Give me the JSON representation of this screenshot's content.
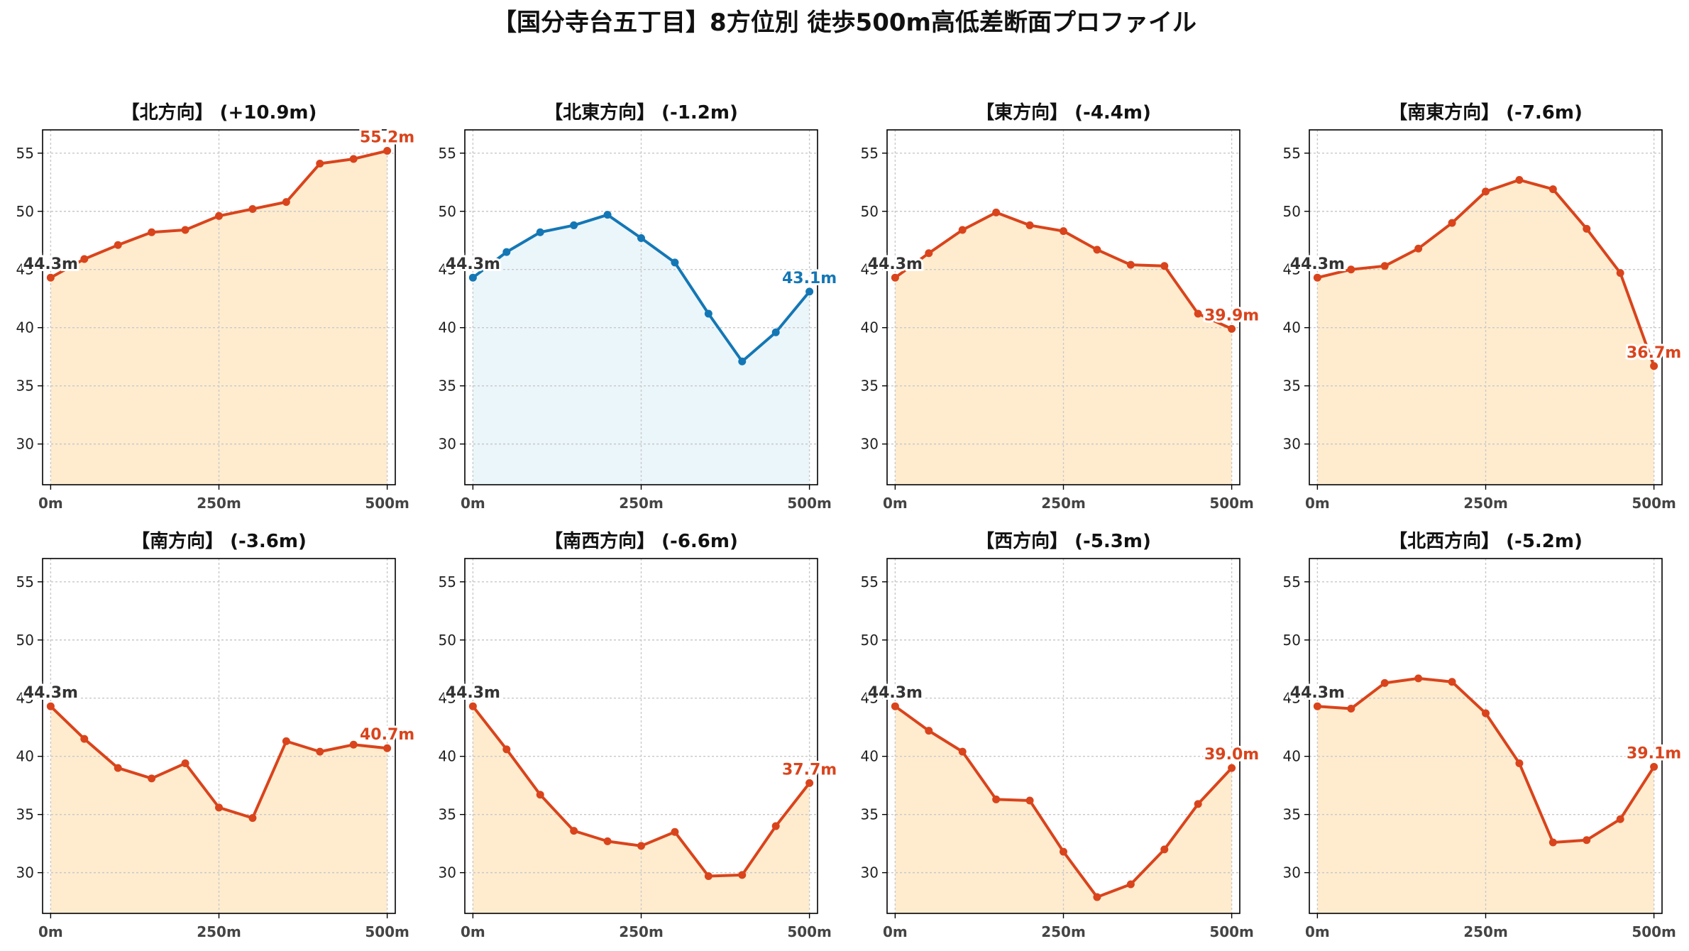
{
  "figure": {
    "title": "【国分寺台五丁目】8方位別 徒歩500m高低差断面プロファイル"
  },
  "colors": {
    "down_line": "#d9441c",
    "down_fill": "#ffeccf",
    "up_line": "#1477b5",
    "up_fill": "#ebf6fb",
    "start_label": "#333333",
    "grid": "#c8c8c8",
    "axis": "#000000"
  },
  "chart_data": [
    {
      "type": "area",
      "title": "【北方向】 (+10.9m)",
      "x": [
        0,
        50,
        100,
        150,
        200,
        250,
        300,
        350,
        400,
        450,
        500
      ],
      "values": [
        44.3,
        45.9,
        47.1,
        48.2,
        48.4,
        49.6,
        50.2,
        50.8,
        54.1,
        54.5,
        55.2
      ],
      "xticks": [
        "0m",
        "250m",
        "500m"
      ],
      "yticks": [
        "30",
        "35",
        "40",
        "45",
        "50",
        "55"
      ],
      "start_label": "44.3m",
      "end_label": "55.2m",
      "ylim": [
        26.5,
        57
      ],
      "xlim": [
        -12,
        512
      ],
      "grid": true,
      "style": "down"
    },
    {
      "type": "area",
      "title": "【北東方向】 (-1.2m)",
      "x": [
        0,
        50,
        100,
        150,
        200,
        250,
        300,
        350,
        400,
        450,
        500
      ],
      "values": [
        44.3,
        46.5,
        48.2,
        48.8,
        49.7,
        47.7,
        45.6,
        41.2,
        37.1,
        39.6,
        43.1
      ],
      "xticks": [
        "0m",
        "250m",
        "500m"
      ],
      "yticks": [
        "30",
        "35",
        "40",
        "45",
        "50",
        "55"
      ],
      "start_label": "44.3m",
      "end_label": "43.1m",
      "ylim": [
        26.5,
        57
      ],
      "xlim": [
        -12,
        512
      ],
      "grid": true,
      "style": "up"
    },
    {
      "type": "area",
      "title": "【東方向】 (-4.4m)",
      "x": [
        0,
        50,
        100,
        150,
        200,
        250,
        300,
        350,
        400,
        450,
        500
      ],
      "values": [
        44.3,
        46.4,
        48.4,
        49.9,
        48.8,
        48.3,
        46.7,
        45.4,
        45.3,
        41.2,
        39.9
      ],
      "xticks": [
        "0m",
        "250m",
        "500m"
      ],
      "yticks": [
        "30",
        "35",
        "40",
        "45",
        "50",
        "55"
      ],
      "start_label": "44.3m",
      "end_label": "39.9m",
      "ylim": [
        26.5,
        57
      ],
      "xlim": [
        -12,
        512
      ],
      "grid": true,
      "style": "down"
    },
    {
      "type": "area",
      "title": "【南東方向】 (-7.6m)",
      "x": [
        0,
        50,
        100,
        150,
        200,
        250,
        300,
        350,
        400,
        450,
        500
      ],
      "values": [
        44.3,
        45.0,
        45.3,
        46.8,
        49.0,
        51.7,
        52.7,
        51.9,
        48.5,
        44.7,
        36.7
      ],
      "xticks": [
        "0m",
        "250m",
        "500m"
      ],
      "yticks": [
        "30",
        "35",
        "40",
        "45",
        "50",
        "55"
      ],
      "start_label": "44.3m",
      "end_label": "36.7m",
      "ylim": [
        26.5,
        57
      ],
      "xlim": [
        -12,
        512
      ],
      "grid": true,
      "style": "down"
    },
    {
      "type": "area",
      "title": "【南方向】 (-3.6m)",
      "x": [
        0,
        50,
        100,
        150,
        200,
        250,
        300,
        350,
        400,
        450,
        500
      ],
      "values": [
        44.3,
        41.5,
        39.0,
        38.1,
        39.4,
        35.6,
        34.7,
        41.3,
        40.4,
        41.0,
        40.7
      ],
      "xticks": [
        "0m",
        "250m",
        "500m"
      ],
      "yticks": [
        "30",
        "35",
        "40",
        "45",
        "50",
        "55"
      ],
      "start_label": "44.3m",
      "end_label": "40.7m",
      "ylim": [
        26.5,
        57
      ],
      "xlim": [
        -12,
        512
      ],
      "grid": true,
      "style": "down"
    },
    {
      "type": "area",
      "title": "【南西方向】 (-6.6m)",
      "x": [
        0,
        50,
        100,
        150,
        200,
        250,
        300,
        350,
        400,
        450,
        500
      ],
      "values": [
        44.3,
        40.6,
        36.7,
        33.6,
        32.7,
        32.3,
        33.5,
        29.7,
        29.8,
        34.0,
        37.7
      ],
      "xticks": [
        "0m",
        "250m",
        "500m"
      ],
      "yticks": [
        "30",
        "35",
        "40",
        "45",
        "50",
        "55"
      ],
      "start_label": "44.3m",
      "end_label": "37.7m",
      "ylim": [
        26.5,
        57
      ],
      "xlim": [
        -12,
        512
      ],
      "grid": true,
      "style": "down"
    },
    {
      "type": "area",
      "title": "【西方向】 (-5.3m)",
      "x": [
        0,
        50,
        100,
        150,
        200,
        250,
        300,
        350,
        400,
        450,
        500
      ],
      "values": [
        44.3,
        42.2,
        40.4,
        36.3,
        36.2,
        31.8,
        27.9,
        29.0,
        32.0,
        35.9,
        39.0
      ],
      "xticks": [
        "0m",
        "250m",
        "500m"
      ],
      "yticks": [
        "30",
        "35",
        "40",
        "45",
        "50",
        "55"
      ],
      "start_label": "44.3m",
      "end_label": "39.0m",
      "ylim": [
        26.5,
        57
      ],
      "xlim": [
        -12,
        512
      ],
      "grid": true,
      "style": "down"
    },
    {
      "type": "area",
      "title": "【北西方向】 (-5.2m)",
      "x": [
        0,
        50,
        100,
        150,
        200,
        250,
        300,
        350,
        400,
        450,
        500
      ],
      "values": [
        44.3,
        44.1,
        46.3,
        46.7,
        46.4,
        43.7,
        39.4,
        32.6,
        32.8,
        34.6,
        39.1
      ],
      "xticks": [
        "0m",
        "250m",
        "500m"
      ],
      "yticks": [
        "30",
        "35",
        "40",
        "45",
        "50",
        "55"
      ],
      "start_label": "44.3m",
      "end_label": "39.1m",
      "ylim": [
        26.5,
        57
      ],
      "xlim": [
        -12,
        512
      ],
      "grid": true,
      "style": "down"
    }
  ]
}
